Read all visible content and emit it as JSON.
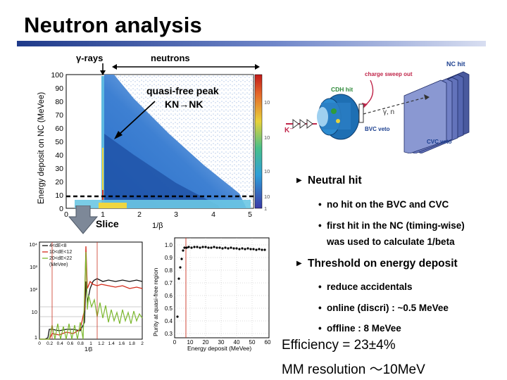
{
  "slide": {
    "title": "Neutron analysis"
  },
  "main_plot": {
    "label_gamma": "γ-rays",
    "label_neutrons": "neutrons",
    "label_qf_peak": "quasi-free peak",
    "label_reaction": "KN→NK",
    "ylabel": "Energy deposit on NC (MeVee)",
    "xlabel": "1/β",
    "y_ticks": [
      "0",
      "10",
      "20",
      "30",
      "40",
      "50",
      "60",
      "70",
      "80",
      "90",
      "100"
    ],
    "x_ticks": [
      "0",
      "1",
      "2",
      "3",
      "4",
      "5"
    ],
    "colorbar_ticks": [
      "10",
      "10",
      "10",
      "10",
      "1"
    ],
    "slice_label": "Slice"
  },
  "detector": {
    "nc_hit": "NC hit",
    "charge_sweep": "charge sweep out",
    "cdh_hit": "CDH hit",
    "k_minus": "K⁻",
    "gamma_n": "γ, n",
    "bvc_veto": "BVC veto",
    "cvc_veto": "CVC veto"
  },
  "slice_plot": {
    "legend": [
      "4<dE<8",
      "10<dE<12",
      "20<dE<22",
      "(MeVee)"
    ],
    "legend_colors": [
      "#111111",
      "#d42a1a",
      "#7cb82f"
    ],
    "y_ticks": [
      "10⁴",
      "10³",
      "10²",
      "10",
      "1"
    ],
    "x_ticks": [
      "0",
      "0.2",
      "0.4",
      "0.6",
      "0.8",
      "1",
      "1.2",
      "1.4",
      "1.6",
      "1.8",
      "2"
    ],
    "xlabel": "1/β"
  },
  "purity_plot": {
    "ylabel": "Purity at quasi-free region",
    "xlabel": "Energy deposit (MeVee)",
    "y_ticks": [
      "1.0",
      "0.9",
      "0.8",
      "0.7",
      "0.6",
      "0.5",
      "0.4",
      "0.3"
    ],
    "x_ticks": [
      "0",
      "10",
      "20",
      "30",
      "40",
      "50",
      "60"
    ]
  },
  "bullets": {
    "neutral_hit": "Neutral hit",
    "neutral_sub1": "no hit on the BVC and CVC",
    "neutral_sub2a": "first hit in the NC (timing-wise)",
    "neutral_sub2b": "was used to calculate 1/beta",
    "threshold": "Threshold on energy deposit",
    "thr_sub1": "reduce accidentals",
    "thr_sub2": "online (discri) : ~0.5 MeVee",
    "thr_sub3": "offline : 8 MeVee",
    "marker": "▶",
    "dot": "•"
  },
  "notes": {
    "efficiency": "Efficiency = 23±4%",
    "resolution": "MM resolution ～10MeV"
  }
}
